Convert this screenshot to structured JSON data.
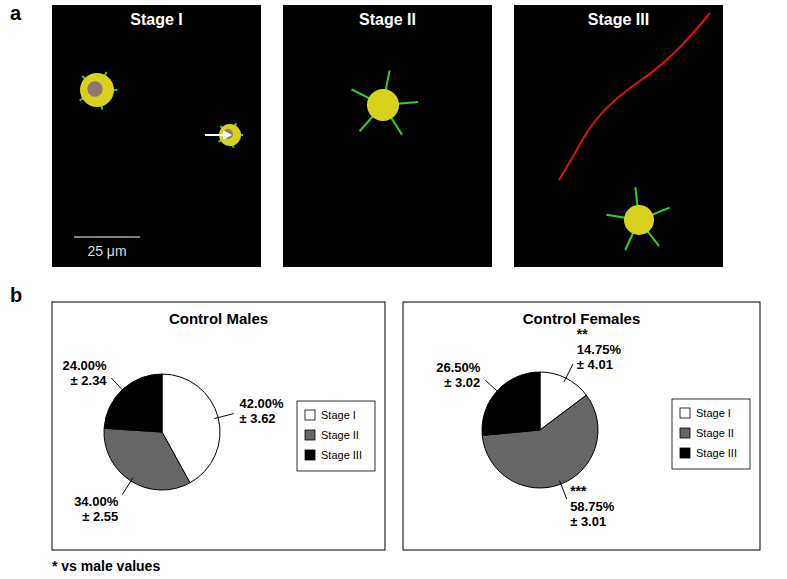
{
  "chart_data": [
    {
      "type": "pie",
      "title": "Control Males",
      "categories": [
        "Stage I",
        "Stage II",
        "Stage III"
      ],
      "values": [
        42.0,
        34.0,
        24.0
      ],
      "value_labels": [
        "42.00%",
        "34.00%",
        "24.00%"
      ],
      "errors": [
        3.62,
        2.55,
        2.34
      ],
      "error_labels": [
        "± 3.62",
        "± 2.55",
        "± 2.34"
      ],
      "colors": [
        "#ffffff",
        "#666666",
        "#000000"
      ],
      "data_labels": true,
      "legend": "right"
    },
    {
      "type": "pie",
      "title": "Control Females",
      "categories": [
        "Stage I",
        "Stage II",
        "Stage III"
      ],
      "values": [
        14.75,
        58.75,
        26.5
      ],
      "value_labels": [
        "14.75%",
        "58.75%",
        "26.50%"
      ],
      "errors": [
        4.01,
        3.01,
        3.02
      ],
      "error_labels": [
        "± 4.01",
        "± 3.01",
        "± 3.02"
      ],
      "significance": [
        "**",
        "***",
        null
      ],
      "colors": [
        "#ffffff",
        "#666666",
        "#000000"
      ],
      "data_labels": true,
      "legend": "right"
    }
  ],
  "figure": {
    "panel_labels": [
      "a",
      "b"
    ],
    "micrograph_titles": [
      "Stage I",
      "Stage II",
      "Stage III"
    ],
    "scale_bar": "25 μm",
    "footnote": "* vs male values"
  }
}
